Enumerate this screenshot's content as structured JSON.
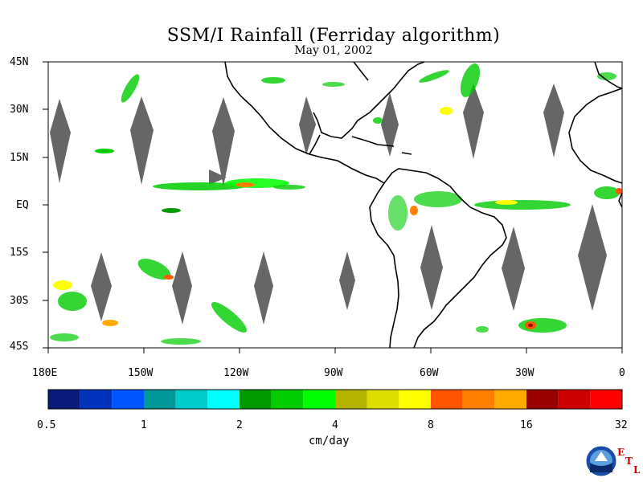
{
  "title": "SSM/I Rainfall (Ferriday algorithm)",
  "date": "May 01, 2002",
  "lat_labels": [
    "45N",
    "30N",
    "15N",
    "EQ",
    "15S",
    "30S",
    "45S"
  ],
  "lon_labels": [
    "180E",
    "150W",
    "120W",
    "90W",
    "60W",
    "30W",
    "0"
  ],
  "colorbar": {
    "units": "cm/day",
    "tick_labels": [
      "0.5",
      "1",
      "2",
      "4",
      "8",
      "16",
      "32"
    ],
    "colors": [
      "#0a1a7a",
      "#0033bb",
      "#0055ff",
      "#00999a",
      "#00cccc",
      "#00ffff",
      "#009900",
      "#00cc00",
      "#00ff00",
      "#b3b300",
      "#dddd00",
      "#ffff00",
      "#ff5500",
      "#ff8000",
      "#ffaa00",
      "#990000",
      "#cc0000",
      "#ff0000"
    ]
  },
  "map": {
    "lon_range": [
      -180,
      0
    ],
    "lat_range": [
      -45,
      45
    ],
    "swath_gap_color": "#666666",
    "coastline_color": "#000000"
  },
  "logo": {
    "name": "NOAA",
    "etl": [
      "E",
      "T",
      "L"
    ]
  }
}
